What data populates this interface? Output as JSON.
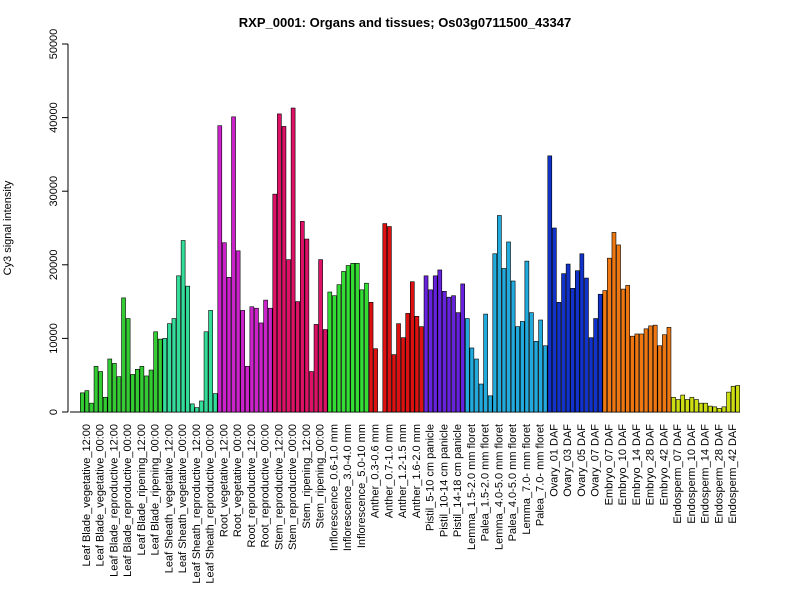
{
  "chart_data": {
    "type": "bar",
    "title": "RXP_0001: Organs and tissues; Os03g0711500_43347",
    "xlabel": "",
    "ylabel": "Cy3 signal intensity",
    "ylim": [
      0,
      50000
    ],
    "yticks": [
      0,
      10000,
      20000,
      30000,
      40000,
      50000
    ],
    "grid": false,
    "legend": "none",
    "groups": [
      {
        "label": "Leaf Blade_vegetative_12:00",
        "color": "#33cc33",
        "values": [
          2600,
          2900,
          1200
        ]
      },
      {
        "label": "Leaf Blade_vegetative_00:00",
        "color": "#33cc33",
        "values": [
          6200,
          5500,
          2000
        ]
      },
      {
        "label": "Leaf Blade_reproductive_12:00",
        "color": "#33cc33",
        "values": [
          7200,
          6600,
          4800
        ]
      },
      {
        "label": "Leaf Blade_reproductive_00:00",
        "color": "#33cc33",
        "values": [
          15500,
          12700,
          5100
        ]
      },
      {
        "label": "Leaf Blade_ripening_12:00",
        "color": "#33cc33",
        "values": [
          5800,
          6200,
          4900
        ]
      },
      {
        "label": "Leaf Blade_ripening_00:00",
        "color": "#33cc33",
        "values": [
          5700,
          10900,
          9900
        ]
      },
      {
        "label": "Leaf Sheath_vegetative_12:00",
        "color": "#33dd99",
        "values": [
          10000,
          12000,
          12700
        ]
      },
      {
        "label": "Leaf Sheath_vegetative_00:00",
        "color": "#33dd99",
        "values": [
          18500,
          23300,
          17100
        ]
      },
      {
        "label": "Leaf Sheath_reproductive_12:00",
        "color": "#33dd99",
        "values": [
          1100,
          600,
          1500
        ]
      },
      {
        "label": "Leaf Sheath_reproductive_00:00",
        "color": "#33dd99",
        "values": [
          10900,
          13800,
          2500
        ]
      },
      {
        "label": "Root_vegetative_12:00",
        "color": "#cc22cc",
        "values": [
          38900,
          23000,
          18300
        ]
      },
      {
        "label": "Root_vegetative_00:00",
        "color": "#cc22cc",
        "values": [
          40100,
          21900,
          13800
        ]
      },
      {
        "label": "Root_reproductive_12:00",
        "color": "#cc22cc",
        "values": [
          6200,
          14300,
          14100
        ]
      },
      {
        "label": "Root_reproductive_00:00",
        "color": "#cc22cc",
        "values": [
          12100,
          15200,
          14100
        ]
      },
      {
        "label": "Stem_reproductive_12:00",
        "color": "#dd1166",
        "values": [
          29600,
          40500,
          38800
        ]
      },
      {
        "label": "Stem_reproductive_00:00",
        "color": "#dd1166",
        "values": [
          20700,
          41300,
          15000
        ]
      },
      {
        "label": "Stem_ripening_12:00",
        "color": "#dd1166",
        "values": [
          25900,
          23500,
          5500
        ]
      },
      {
        "label": "Stem_ripening_00:00",
        "color": "#dd1166",
        "values": [
          11900,
          20700,
          11200
        ]
      },
      {
        "label": "Inflorescence_0.6-1.0 mm",
        "color": "#33dd33",
        "values": [
          16300,
          15800,
          17300
        ]
      },
      {
        "label": "Inflorescence_3.0-4.0 mm",
        "color": "#33dd33",
        "values": [
          19100,
          19900,
          20200
        ]
      },
      {
        "label": "Inflorescence_5.0-10 mm",
        "color": "#33dd33",
        "values": [
          20200,
          16600,
          17500
        ]
      },
      {
        "label": "Anther_0.3-0.6 mm",
        "color": "#dd1111",
        "values": [
          14900,
          8600
        ]
      },
      {
        "label": "Anther_0.7-1.0 mm",
        "color": "#dd1111",
        "values": [
          25600,
          25200,
          7800
        ]
      },
      {
        "label": "Anther_1.2-1.5 mm",
        "color": "#dd1111",
        "values": [
          12000,
          10100,
          13400
        ]
      },
      {
        "label": "Anther_1.6-2.0 mm",
        "color": "#dd1111",
        "values": [
          17700,
          13000,
          11600
        ]
      },
      {
        "label": "Pistil_5-10 cm panicle",
        "color": "#6622dd",
        "values": [
          18500,
          16600,
          18500
        ]
      },
      {
        "label": "Pistil_10-14 cm panicle",
        "color": "#6622dd",
        "values": [
          19300,
          16400,
          15600
        ]
      },
      {
        "label": "Pistil_14-18 cm panicle",
        "color": "#6622dd",
        "values": [
          15800,
          13500,
          17400
        ]
      },
      {
        "label": "Lemma_1.5-2.0 mm floret",
        "color": "#22aadd",
        "values": [
          12700,
          8700,
          7200
        ]
      },
      {
        "label": "Palea_1.5-2.0 mm floret",
        "color": "#22aadd",
        "values": [
          3800,
          13300,
          2200
        ]
      },
      {
        "label": "Lemma_4.0-5.0 mm floret",
        "color": "#22aadd",
        "values": [
          21500,
          26700,
          19500
        ]
      },
      {
        "label": "Palea_4.0-5.0 mm floret",
        "color": "#22aadd",
        "values": [
          23100,
          17800,
          11600
        ]
      },
      {
        "label": "Lemma_7.0- mm floret",
        "color": "#22aadd",
        "values": [
          12300,
          20500,
          13500
        ]
      },
      {
        "label": "Palea_7.0- mm floret",
        "color": "#22aadd",
        "values": [
          9600,
          12500,
          9000
        ]
      },
      {
        "label": "Ovary_01 DAF",
        "color": "#1133cc",
        "values": [
          34800,
          25000,
          14900
        ]
      },
      {
        "label": "Ovary_03 DAF",
        "color": "#1133cc",
        "values": [
          18800,
          20100,
          16800
        ]
      },
      {
        "label": "Ovary_05 DAF",
        "color": "#1133cc",
        "values": [
          19200,
          21500,
          18200
        ]
      },
      {
        "label": "Ovary_07 DAF",
        "color": "#1133cc",
        "values": [
          10100,
          12700,
          16000
        ]
      },
      {
        "label": "Embryo_07 DAF",
        "color": "#ee7711",
        "values": [
          16500,
          20900,
          24400
        ]
      },
      {
        "label": "Embryo_10 DAF",
        "color": "#ee7711",
        "values": [
          22700,
          16700,
          17200
        ]
      },
      {
        "label": "Embryo_14 DAF",
        "color": "#ee7711",
        "values": [
          10300,
          10600,
          10600
        ]
      },
      {
        "label": "Embryo_28 DAF",
        "color": "#ee7711",
        "values": [
          11300,
          11700,
          11800
        ]
      },
      {
        "label": "Embryo_42 DAF",
        "color": "#ee7711",
        "values": [
          9000,
          10500,
          11500
        ]
      },
      {
        "label": "Endosperm_07 DAF",
        "color": "#ccdd11",
        "values": [
          2000,
          1700,
          2300
        ]
      },
      {
        "label": "Endosperm_10 DAF",
        "color": "#ccdd11",
        "values": [
          1700,
          2000,
          1700
        ]
      },
      {
        "label": "Endosperm_14 DAF",
        "color": "#ccdd11",
        "values": [
          1200,
          1200,
          800
        ]
      },
      {
        "label": "Endosperm_28 DAF",
        "color": "#ccdd11",
        "values": [
          700,
          500,
          700
        ]
      },
      {
        "label": "Endosperm_42 DAF",
        "color": "#ccdd11",
        "values": [
          2700,
          3500,
          3600
        ]
      }
    ]
  }
}
